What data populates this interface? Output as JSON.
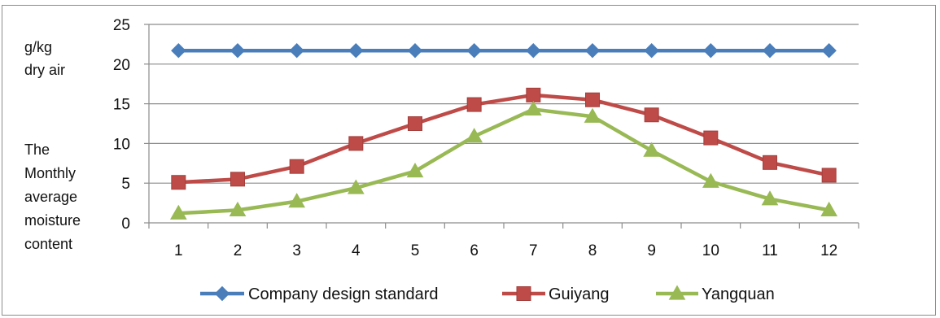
{
  "chart_data": {
    "type": "line",
    "categories": [
      "1",
      "2",
      "3",
      "4",
      "5",
      "6",
      "7",
      "8",
      "9",
      "10",
      "11",
      "12"
    ],
    "series": [
      {
        "name": "Company design standard",
        "color": "#4a7ebb",
        "marker": "diamond",
        "values": [
          21.7,
          21.7,
          21.7,
          21.7,
          21.7,
          21.7,
          21.7,
          21.7,
          21.7,
          21.7,
          21.7,
          21.7
        ]
      },
      {
        "name": "Guiyang",
        "color": "#be4b48",
        "marker": "square",
        "values": [
          5.1,
          5.5,
          7.1,
          10.0,
          12.5,
          14.9,
          16.1,
          15.5,
          13.6,
          10.7,
          7.6,
          6.0
        ]
      },
      {
        "name": "Yangquan",
        "color": "#98b954",
        "marker": "triangle",
        "values": [
          1.2,
          1.6,
          2.7,
          4.4,
          6.5,
          10.9,
          14.3,
          13.4,
          9.1,
          5.2,
          3.0,
          1.6
        ]
      }
    ],
    "y_ticks": [
      "0",
      "5",
      "10",
      "15",
      "20",
      "25"
    ],
    "ylim": [
      0,
      25
    ],
    "ylabel_unit_lines": [
      "g/kg",
      "dry air"
    ],
    "ylabel_lines": [
      "The",
      " Monthly",
      "average",
      "moisture",
      "content"
    ],
    "grid": true,
    "legend_position": "bottom"
  }
}
